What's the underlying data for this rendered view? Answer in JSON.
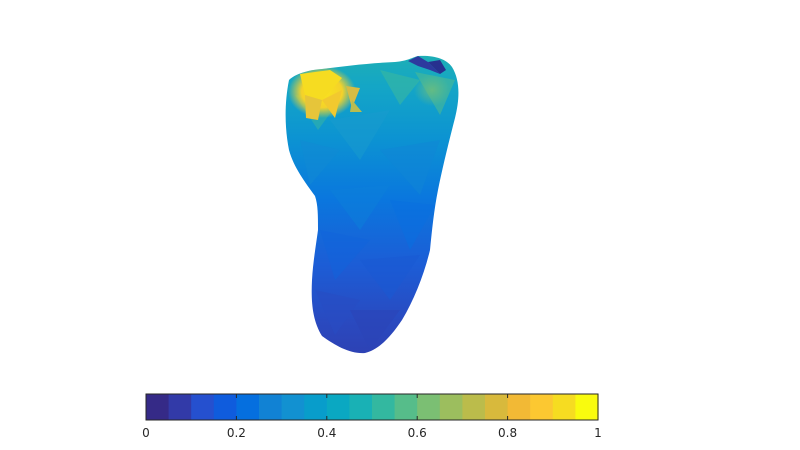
{
  "colorbar": {
    "orientation": "horizontal",
    "colormap": "parula",
    "limits": [
      0,
      1
    ],
    "tick_values": [
      0,
      0.2,
      0.4,
      0.6,
      0.8,
      1
    ],
    "tick_labels": [
      "0",
      "0.2",
      "0.4",
      "0.6",
      "0.8",
      "1"
    ],
    "stops": [
      "#352a87",
      "#323aa8",
      "#2550cf",
      "#0f5cdd",
      "#056fdf",
      "#1182d4",
      "#1291d1",
      "#089dcb",
      "#0aa8c2",
      "#19b1b5",
      "#33b8a0",
      "#56bd8a",
      "#7bbf73",
      "#9cbe5e",
      "#bbbc4b",
      "#d8b93c",
      "#f2b935",
      "#fcc831",
      "#f6dc21",
      "#f9fb0e"
    ]
  },
  "surface": {
    "description": "3D mesh surface colored by value",
    "value_range": [
      0,
      1
    ]
  },
  "colors": {
    "axis_stroke": "#262626",
    "background": "#ffffff"
  }
}
